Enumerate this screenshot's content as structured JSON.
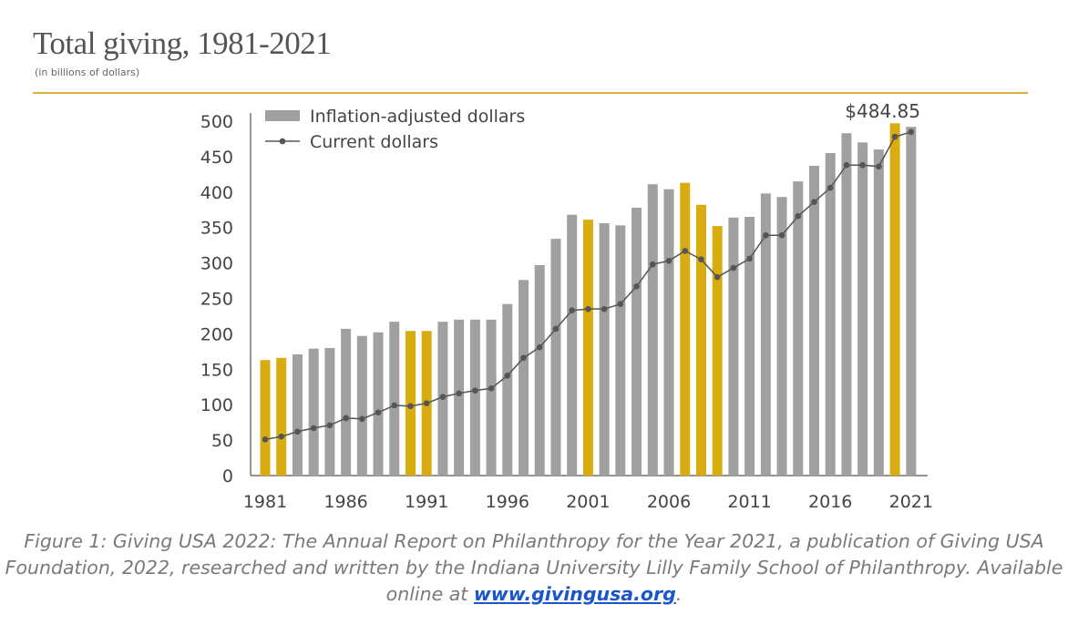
{
  "chart_data": {
    "type": "bar",
    "title": "Total giving, 1981-2021",
    "subtitle": "(in billions of dollars)",
    "xlabel": "",
    "ylabel": "",
    "ylim": [
      0,
      500
    ],
    "yticks": [
      0,
      50,
      100,
      150,
      200,
      250,
      300,
      350,
      400,
      450,
      500
    ],
    "xtick_labels": [
      "1981",
      "1986",
      "1991",
      "1996",
      "2001",
      "2006",
      "2011",
      "2016",
      "2021"
    ],
    "legend": {
      "position": "top-left",
      "entries": [
        "Inflation-adjusted dollars",
        "Current dollars"
      ]
    },
    "annotation": "$484.85",
    "categories": [
      1981,
      1982,
      1983,
      1984,
      1985,
      1986,
      1987,
      1988,
      1989,
      1990,
      1991,
      1992,
      1993,
      1994,
      1995,
      1996,
      1997,
      1998,
      1999,
      2000,
      2001,
      2002,
      2003,
      2004,
      2005,
      2006,
      2007,
      2008,
      2009,
      2010,
      2011,
      2012,
      2013,
      2014,
      2015,
      2016,
      2017,
      2018,
      2019,
      2020,
      2021
    ],
    "highlighted_years": [
      1981,
      1982,
      1990,
      1991,
      2001,
      2007,
      2008,
      2009,
      2020
    ],
    "series": [
      {
        "name": "Inflation-adjusted dollars",
        "type": "bar",
        "values": [
          163,
          166,
          171,
          179,
          180,
          207,
          197,
          202,
          217,
          204,
          204,
          217,
          220,
          220,
          220,
          242,
          276,
          297,
          334,
          368,
          361,
          356,
          353,
          378,
          411,
          404,
          413,
          382,
          352,
          364,
          365,
          398,
          393,
          415,
          437,
          455,
          483,
          470,
          460,
          497,
          492
        ]
      },
      {
        "name": "Current dollars",
        "type": "line",
        "values": [
          51,
          55,
          62,
          67,
          71,
          81,
          80,
          89,
          99,
          98,
          102,
          111,
          116,
          120,
          123,
          141,
          166,
          181,
          207,
          233,
          235,
          235,
          242,
          267,
          298,
          303,
          317,
          305,
          280,
          293,
          306,
          339,
          339,
          366,
          386,
          406,
          438,
          438,
          436,
          478,
          484.85
        ]
      }
    ]
  },
  "colors": {
    "bar": "#a0a0a0",
    "highlight": "#d9ac12",
    "line": "#555555",
    "rule": "#d8b43a"
  },
  "caption": {
    "text": "Figure 1: Giving USA 2022: The Annual Report on Philanthropy for the Year 2021, a publication of Giving USA Foundation, 2022, researched and written by the Indiana University Lilly Family School of Philanthropy. Available online at ",
    "link": "www.givingusa.org",
    "end": "."
  }
}
